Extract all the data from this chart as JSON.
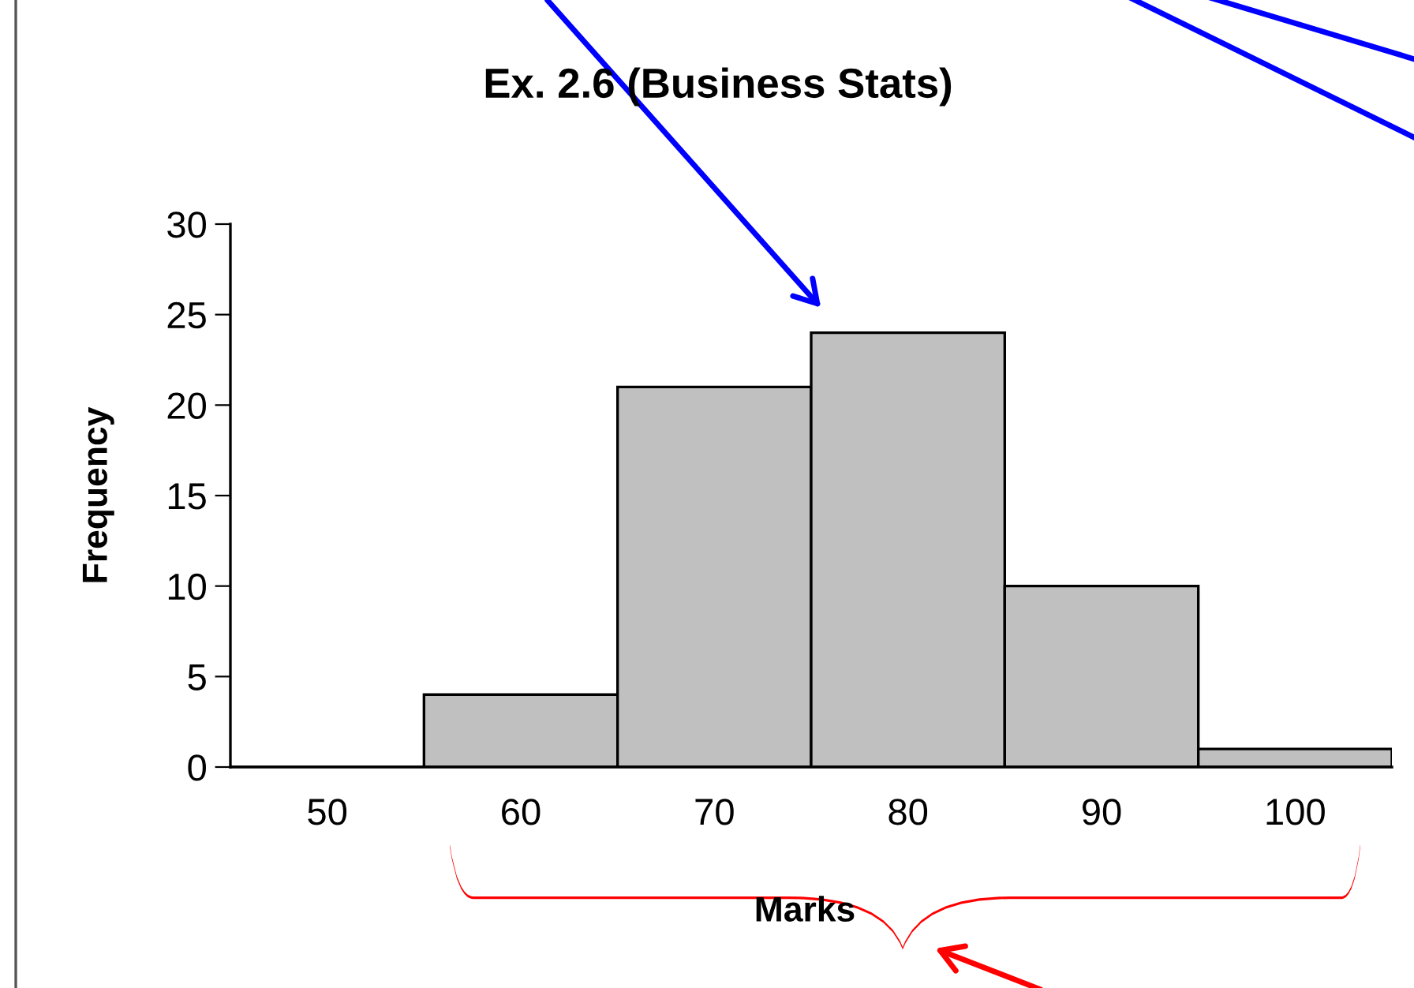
{
  "chart_data": {
    "type": "bar",
    "title": "Ex. 2.6 (Business Stats)",
    "xlabel": "Marks",
    "ylabel": "Frequency",
    "categories": [
      "50",
      "60",
      "70",
      "80",
      "90",
      "100"
    ],
    "values": [
      0,
      4,
      21,
      24,
      10,
      1
    ],
    "color": "#c0c0c0",
    "ylim": [
      0,
      30
    ],
    "yticks": [
      0,
      5,
      10,
      15,
      20,
      25,
      30
    ],
    "grid": false
  }
}
